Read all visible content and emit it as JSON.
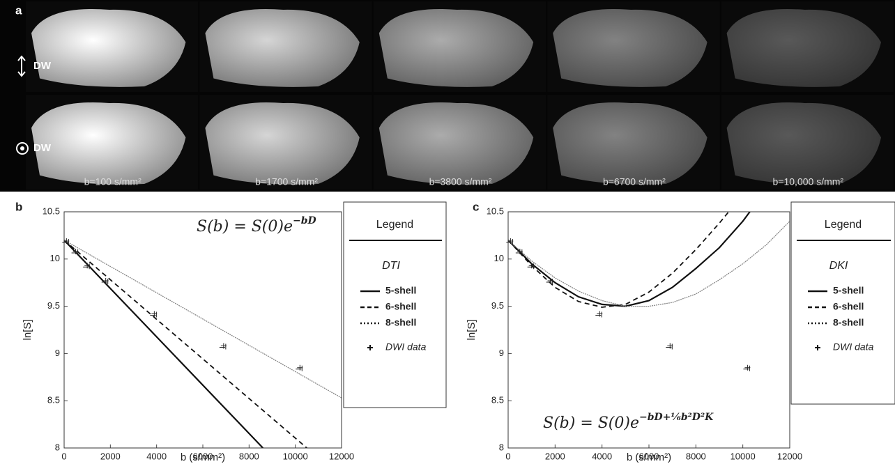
{
  "panel_a": {
    "label": "a",
    "rows": [
      "DW",
      "DW"
    ],
    "columns": [
      "b=100 s/mm²",
      "b=1700 s/mm²",
      "b=3800 s/mm²",
      "b=6700 s/mm²",
      "b=10,000 s/mm²"
    ]
  },
  "chart_data": [
    {
      "type": "line",
      "panel_label": "b",
      "xlabel": "b (s/mm²)",
      "ylabel": "ln[S]",
      "equation": "S(b) = S(0)e",
      "equation_exponent": "−bD",
      "xlim": [
        0,
        12000
      ],
      "ylim": [
        8,
        10.5
      ],
      "xticks": [
        0,
        2000,
        4000,
        6000,
        8000,
        10000,
        12000
      ],
      "yticks": [
        8,
        8.5,
        9,
        9.5,
        10,
        10.5
      ],
      "legend_title": "Legend",
      "legend_subtitle": "DTI",
      "legend_position": "right",
      "series": [
        {
          "name": "5-shell",
          "style": "solid",
          "color": "#111111",
          "x": [
            0,
            8600
          ],
          "values": [
            10.2,
            8
          ]
        },
        {
          "name": "6-shell",
          "style": "dashed",
          "color": "#111111",
          "x": [
            0,
            10500
          ],
          "values": [
            10.2,
            8
          ]
        },
        {
          "name": "8-shell",
          "style": "dotted",
          "color": "#888888",
          "x": [
            0,
            12000
          ],
          "values": [
            10.2,
            8.53
          ]
        },
        {
          "name": "DWI data",
          "style": "markers",
          "color": "#222222",
          "x": [
            100,
            500,
            1000,
            1800,
            3900,
            6900,
            10200
          ],
          "values": [
            10.19,
            10.08,
            9.93,
            9.77,
            9.42,
            9.08,
            8.85
          ]
        }
      ]
    },
    {
      "type": "line",
      "panel_label": "c",
      "xlabel": "b (s/mm²)",
      "ylabel": "ln[S]",
      "equation": "S(b) = S(0)e",
      "equation_exponent": "−bD+⅙b²D²K",
      "xlim": [
        0,
        12000
      ],
      "ylim": [
        8,
        10.5
      ],
      "xticks": [
        0,
        2000,
        4000,
        6000,
        8000,
        10000,
        12000
      ],
      "yticks": [
        8,
        8.5,
        9,
        9.5,
        10,
        10.5
      ],
      "legend_title": "Legend",
      "legend_subtitle": "DKI",
      "legend_position": "right",
      "series": [
        {
          "name": "5-shell",
          "style": "solid",
          "color": "#111111",
          "x": [
            0,
            1000,
            2000,
            3000,
            4000,
            5000,
            6000,
            7000,
            8000,
            9000,
            10000,
            10300
          ],
          "values": [
            10.2,
            9.95,
            9.75,
            9.6,
            9.52,
            9.5,
            9.56,
            9.7,
            9.9,
            10.12,
            10.4,
            10.5
          ]
        },
        {
          "name": "6-shell",
          "style": "dashed",
          "color": "#111111",
          "x": [
            0,
            1000,
            2000,
            3000,
            4000,
            5000,
            6000,
            7000,
            8000,
            9000,
            9400
          ],
          "values": [
            10.2,
            9.93,
            9.7,
            9.55,
            9.49,
            9.52,
            9.65,
            9.85,
            10.1,
            10.38,
            10.5
          ]
        },
        {
          "name": "8-shell",
          "style": "dotted",
          "color": "#888888",
          "x": [
            0,
            1000,
            2000,
            3000,
            4000,
            5000,
            6000,
            7000,
            8000,
            9000,
            10000,
            11000,
            12000
          ],
          "values": [
            10.2,
            9.98,
            9.8,
            9.66,
            9.56,
            9.5,
            9.5,
            9.54,
            9.63,
            9.78,
            9.95,
            10.15,
            10.4
          ]
        },
        {
          "name": "DWI data",
          "style": "markers",
          "color": "#222222",
          "x": [
            100,
            500,
            1000,
            1800,
            3900,
            6900,
            10200
          ],
          "values": [
            10.19,
            10.08,
            9.93,
            9.77,
            9.42,
            9.08,
            8.85
          ]
        }
      ]
    }
  ]
}
